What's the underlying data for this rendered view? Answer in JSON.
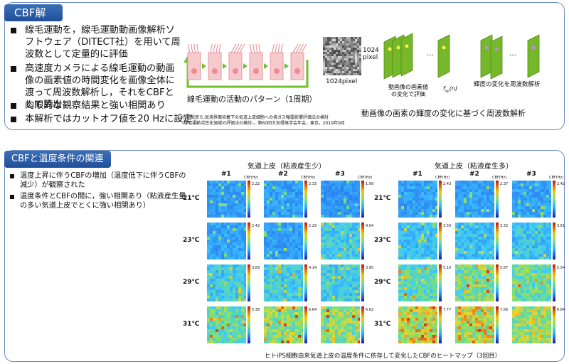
{
  "section1": {
    "title": "CBF解析",
    "bullets": [
      "線毛運動を，線毛運動動画像解析ソフトウェア（DITECT社）を用いて周波数として定量的に評価",
      "高速度カメラによる線毛運動の動画像の画素値の時間変化を画像全体に渡って周波数解析し，それをCBFとして算出",
      "肉眼的な観察結果と強い相関あり",
      "本解析ではカットオフ値を20 Hzに設定"
    ],
    "diagram": {
      "cilia_caption": "線毛運動の活動のパターン（1周期）",
      "pixel_right": "1024\npixel",
      "pixel_bottom": "1024pixel",
      "pixel_eval": "動画像の画素値\nの変化で評価",
      "formula": "f",
      "formula_sub": "xy",
      "formula_arg": "(n)",
      "freq_label": "輝度の変化を周波数解析",
      "ellipsis": "…",
      "main_caption": "動画像の画素の輝度の変化に基づく周波数解析"
    },
    "citation_line1": "小川毅彦ら:気液界面培養下の気道上皮細胞への排ガス曝露影響評価法の検討",
    "citation_line2": "-線毛運動活性化領域の評価法の検討-。第60回大気環境学会年会，東京，2019年9月"
  },
  "section2": {
    "title": "CBFと温度条件の関連性",
    "bullets": [
      "温度上昇に伴うCBFの増加（温度低下に伴うCBFの減少）が観察された",
      "温度条件とCBFの間に，強い相関あり（粘液産生量の多い気道上皮でとくに強い相関あり）"
    ],
    "heatmap": {
      "group_low": "気道上皮（粘液産生少）",
      "group_high": "気道上皮（粘液産生多）",
      "columns": [
        "#1",
        "#2",
        "#3"
      ],
      "rows": [
        "21℃",
        "23℃",
        "29℃",
        "31℃"
      ],
      "unit": "CBF(Hz)",
      "values_low": [
        [
          "2.22",
          "2.33",
          "1.99"
        ],
        [
          "2.42",
          "2.29",
          "4.04"
        ],
        [
          "3.89",
          "4.14",
          "3.95"
        ],
        [
          "5.38",
          "6.64",
          "6.62"
        ]
      ],
      "values_high": [
        [
          "2.43",
          "2.37",
          "2.42"
        ],
        [
          "3.50",
          "3.32",
          "3.61"
        ],
        [
          "5.10",
          "5.87",
          "5.54"
        ],
        [
          "7.77",
          "7.66",
          "6.84"
        ]
      ],
      "caption": "ヒトiPS細胞由来気道上皮の温度条件に依存して変化したCBFのヒートマップ（3回目）"
    },
    "colors": {
      "panel_border": "#6e8fc0",
      "tab": "#2a5ca8",
      "frame_green": "#77b82a",
      "cell_pink": "#f6c9cc"
    }
  }
}
